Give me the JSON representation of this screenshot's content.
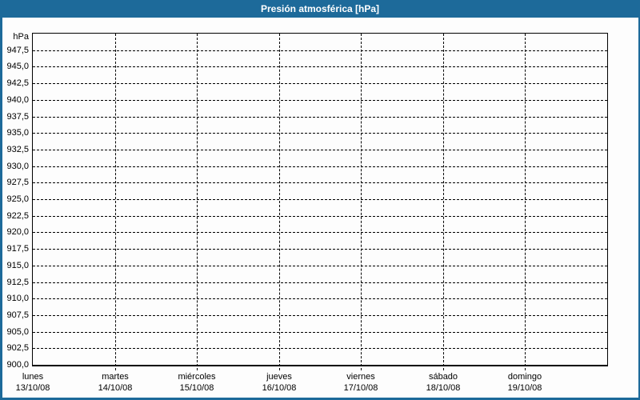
{
  "title": "Presión atmosférica [hPa]",
  "colors": {
    "frame_blue": "#1d6a9a",
    "title_text": "#ffffff",
    "plot_border": "#000000",
    "gridline": "#000000",
    "background": "#fdfdfd",
    "label_text": "#000000"
  },
  "chart_data": {
    "type": "line",
    "title": "Presión atmosférica [hPa]",
    "ylabel": "hPa",
    "ylim": [
      900,
      950
    ],
    "ytick_step": 2.5,
    "ytick_labels": [
      "947,5",
      "945,0",
      "942,5",
      "940,0",
      "937,5",
      "935,0",
      "932,5",
      "930,0",
      "927,5",
      "925,0",
      "922,5",
      "920,0",
      "917,5",
      "915,0",
      "912,5",
      "910,0",
      "907,5",
      "905,0",
      "902,5",
      "900,0"
    ],
    "x_categories": [
      {
        "day": "lunes",
        "date": "13/10/08"
      },
      {
        "day": "martes",
        "date": "14/10/08"
      },
      {
        "day": "miércoles",
        "date": "15/10/08"
      },
      {
        "day": "jueves",
        "date": "16/10/08"
      },
      {
        "day": "viernes",
        "date": "17/10/08"
      },
      {
        "day": "sábado",
        "date": "18/10/08"
      },
      {
        "day": "domingo",
        "date": "19/10/08"
      }
    ],
    "x_slots": 7,
    "grid": true,
    "legend": null,
    "series": []
  }
}
